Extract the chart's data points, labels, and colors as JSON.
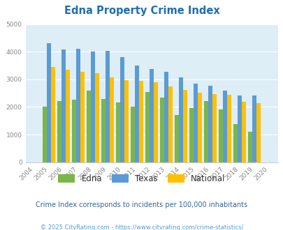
{
  "title": "Edna Property Crime Index",
  "all_years": [
    2004,
    2005,
    2006,
    2007,
    2008,
    2009,
    2010,
    2011,
    2012,
    2013,
    2014,
    2015,
    2016,
    2017,
    2018,
    2019,
    2020
  ],
  "edna": [
    0,
    2020,
    2220,
    2270,
    2600,
    2300,
    2160,
    2010,
    2550,
    2340,
    1720,
    1970,
    2220,
    1900,
    1390,
    1100,
    0
  ],
  "texas": [
    0,
    4300,
    4080,
    4100,
    4000,
    4030,
    3810,
    3490,
    3380,
    3270,
    3060,
    2850,
    2780,
    2580,
    2420,
    2420,
    0
  ],
  "national": [
    0,
    3460,
    3360,
    3270,
    3230,
    3060,
    2960,
    2940,
    2900,
    2740,
    2620,
    2510,
    2470,
    2450,
    2200,
    2140,
    0
  ],
  "edna_color": "#7ab648",
  "texas_color": "#5b9bd5",
  "national_color": "#ffc000",
  "bg_color": "#ddeef6",
  "ylim": [
    0,
    5000
  ],
  "yticks": [
    0,
    1000,
    2000,
    3000,
    4000,
    5000
  ],
  "subtitle": "Crime Index corresponds to incidents per 100,000 inhabitants",
  "footer": "© 2025 CityRating.com - https://www.cityrating.com/crime-statistics/",
  "title_color": "#1f6eb5",
  "subtitle_color": "#336699",
  "footer_color": "#5b9bd5"
}
